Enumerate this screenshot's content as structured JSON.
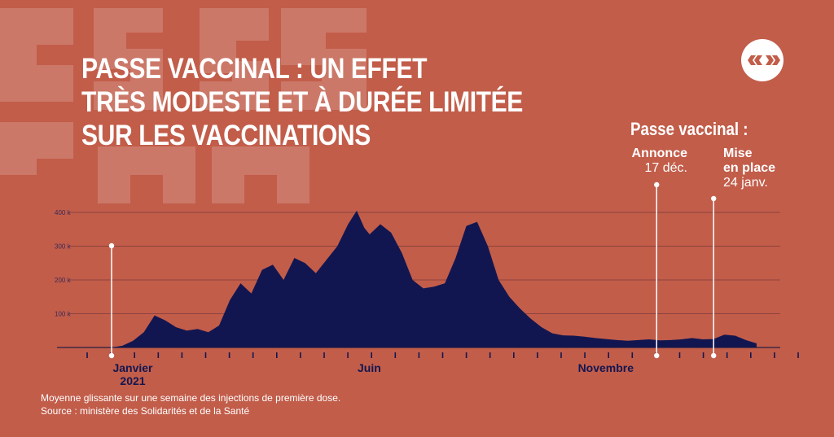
{
  "title": {
    "line1": "PASSE VACCINAL : UN EFFET",
    "line2": "TRÈS MODESTE ET À DURÉE LIMITÉE",
    "line3": "SUR LES VACCINATIONS"
  },
  "annotations": {
    "heading": "Passe vaccinal :",
    "announce_label": "Annonce",
    "announce_date": "17 déc.",
    "implement_label1": "Mise",
    "implement_label2": "en place",
    "implement_date": "24 janv."
  },
  "footer": {
    "note": "Moyenne glissante sur une semaine des injections de première dose.",
    "source": "Source : ministère des Solidarités et de la Santé"
  },
  "colors": {
    "background": "#c25d4a",
    "area": "#121650",
    "text": "#ffffff"
  },
  "icons": [
    "logo-icon"
  ],
  "chart_data": {
    "type": "area",
    "y_ticks": [
      "400 k",
      "300 k",
      "200 k",
      "100 k"
    ],
    "ylim": [
      0,
      400000
    ],
    "x_labels": [
      {
        "text": "Janvier",
        "text2": "2021",
        "week": 0
      },
      {
        "text": "Juin",
        "week": 22
      },
      {
        "text": "Novembre",
        "week": 44
      }
    ],
    "grid": true,
    "week_ticks": 31,
    "x_unit": "semaines depuis janvier 2021",
    "series": [
      {
        "values": [
          [
            -2,
            0
          ],
          [
            0,
            0
          ],
          [
            1,
            5000
          ],
          [
            2,
            20000
          ],
          [
            3,
            45000
          ],
          [
            4,
            95000
          ],
          [
            5,
            80000
          ],
          [
            6,
            60000
          ],
          [
            7,
            50000
          ],
          [
            8,
            55000
          ],
          [
            9,
            45000
          ],
          [
            10,
            65000
          ],
          [
            11,
            140000
          ],
          [
            12,
            190000
          ],
          [
            13,
            160000
          ],
          [
            14,
            230000
          ],
          [
            15,
            245000
          ],
          [
            16,
            200000
          ],
          [
            17,
            265000
          ],
          [
            18,
            250000
          ],
          [
            19,
            220000
          ],
          [
            20,
            260000
          ],
          [
            21,
            300000
          ],
          [
            22,
            365000
          ],
          [
            22.8,
            405000
          ],
          [
            23.5,
            355000
          ],
          [
            24,
            335000
          ],
          [
            25,
            365000
          ],
          [
            26,
            340000
          ],
          [
            27,
            280000
          ],
          [
            28,
            200000
          ],
          [
            29,
            175000
          ],
          [
            30,
            180000
          ],
          [
            31,
            190000
          ],
          [
            32,
            265000
          ],
          [
            33,
            360000
          ],
          [
            34,
            372000
          ],
          [
            35,
            300000
          ],
          [
            36,
            200000
          ],
          [
            37,
            150000
          ],
          [
            38,
            115000
          ],
          [
            39,
            85000
          ],
          [
            40,
            60000
          ],
          [
            41,
            42000
          ],
          [
            42,
            36000
          ],
          [
            43,
            35000
          ],
          [
            44,
            32000
          ],
          [
            45,
            28000
          ],
          [
            46,
            25000
          ],
          [
            47,
            22000
          ],
          [
            48,
            20000
          ],
          [
            49,
            22000
          ],
          [
            50,
            24000
          ],
          [
            51,
            21000
          ],
          [
            52,
            22000
          ],
          [
            53,
            24000
          ],
          [
            54,
            28000
          ],
          [
            55,
            24000
          ],
          [
            56,
            25000
          ],
          [
            57,
            38000
          ],
          [
            58,
            35000
          ],
          [
            59,
            22000
          ],
          [
            60,
            12000
          ]
        ]
      }
    ],
    "events": [
      {
        "name": "Annonce",
        "date": "17 déc.",
        "week": 50.7
      },
      {
        "name": "Mise en place",
        "date": "24 janv.",
        "week": 56
      }
    ]
  }
}
